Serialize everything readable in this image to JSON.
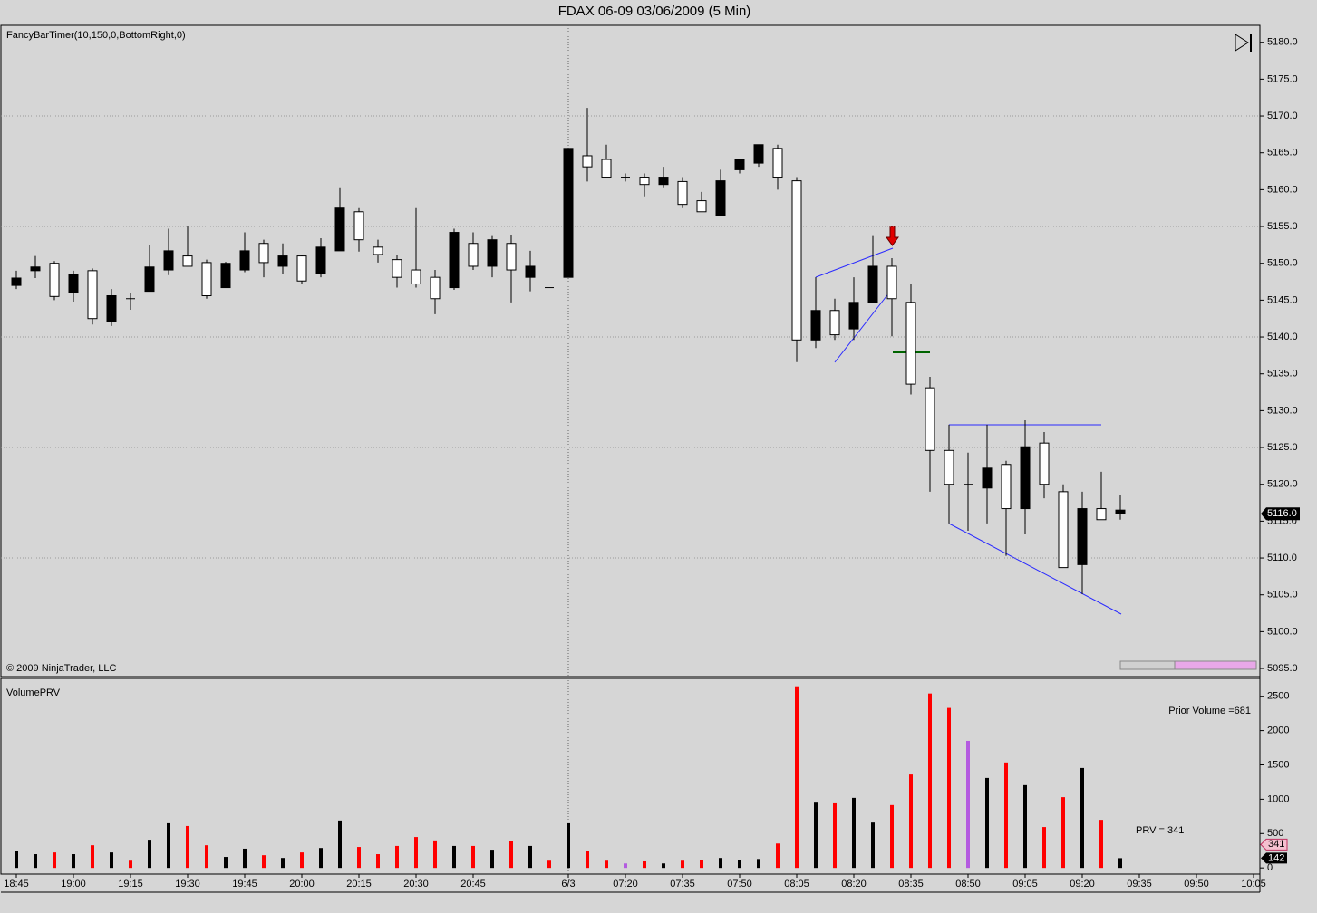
{
  "title": "FDAX 06-09  03/06/2009 (5 Min)",
  "indicator_label": "FancyBarTimer(10,150,0,BottomRight,0)",
  "copyright": "© 2009 NinjaTrader, LLC",
  "chart_data": [
    {
      "type": "candlestick",
      "categories": [
        "18:45",
        null,
        null,
        "19:00",
        null,
        null,
        "19:15",
        null,
        null,
        "19:30",
        null,
        null,
        "19:45",
        null,
        null,
        "20:00",
        null,
        null,
        "20:15",
        null,
        null,
        "20:30",
        null,
        null,
        "20:45",
        null,
        null,
        null,
        null,
        "6/3",
        null,
        null,
        "07:20",
        null,
        null,
        "07:35",
        null,
        null,
        "07:50",
        null,
        null,
        "08:05",
        null,
        null,
        "08:20",
        null,
        null,
        "08:35",
        null,
        null,
        "08:50",
        null,
        null,
        "09:05",
        null,
        null,
        "09:20",
        null,
        null,
        "09:35",
        null,
        null,
        "09:50",
        null,
        null,
        "10:05"
      ],
      "open": [
        5148.0,
        5149.5,
        5145.5,
        5148.5,
        5142.5,
        5145.6,
        5145.2,
        5149.5,
        5151.7,
        5149.6,
        5145.6,
        5150.0,
        5151.7,
        5150.1,
        5151.0,
        5147.6,
        5152.2,
        5157.5,
        5153.2,
        5151.2,
        5148.1,
        5147.2,
        5145.2,
        5154.2,
        5149.6,
        5153.2,
        5149.1,
        5149.6,
        5146.7,
        5165.6,
        5163.1,
        5161.7,
        5161.7,
        5160.7,
        5161.7,
        5158.0,
        5157.0,
        5161.2,
        5164.1,
        5166.1,
        5161.7,
        5139.6,
        5143.6,
        5140.3,
        5144.7,
        5149.6,
        5145.2,
        5133.6,
        5124.6,
        5120.0,
        5120.0,
        5122.2,
        5116.7,
        5125.1,
        5120.0,
        5108.7,
        5116.7,
        5115.2,
        5116.5,
        null,
        null,
        null,
        null,
        null,
        null,
        null
      ],
      "high": [
        5149.0,
        5151.0,
        5150.3,
        5149.0,
        5149.3,
        5146.5,
        5146.0,
        5152.5,
        5154.7,
        5155.0,
        5150.5,
        5150.2,
        5154.2,
        5153.2,
        5152.7,
        5151.2,
        5153.4,
        5160.2,
        5157.5,
        5153.2,
        5151.2,
        5157.5,
        5149.1,
        5154.7,
        5154.2,
        5153.7,
        5153.9,
        5151.7,
        5146.7,
        5165.6,
        5171.1,
        5166.1,
        5162.2,
        5162.2,
        5163.1,
        5161.7,
        5159.7,
        5162.7,
        5164.1,
        5166.1,
        5166.1,
        5161.7,
        5148.1,
        5145.2,
        5148.1,
        5153.7,
        5150.7,
        5147.2,
        5134.6,
        5128.1,
        5124.3,
        5128.1,
        5123.2,
        5128.7,
        5127.1,
        5120.0,
        5119.0,
        5121.7,
        5118.5,
        null,
        null,
        null,
        null,
        null,
        null,
        null
      ],
      "low": [
        5146.5,
        5148.0,
        5145.0,
        5144.8,
        5141.7,
        5141.5,
        5143.7,
        5146.2,
        5148.4,
        5149.6,
        5145.2,
        5146.7,
        5148.8,
        5148.1,
        5148.6,
        5147.2,
        5148.1,
        5151.7,
        5151.6,
        5150.1,
        5146.7,
        5146.7,
        5143.1,
        5146.4,
        5149.1,
        5148.1,
        5144.7,
        5146.2,
        5146.7,
        5148.1,
        5161.1,
        5161.7,
        5161.1,
        5159.1,
        5160.2,
        5157.5,
        5157.0,
        5156.5,
        5162.2,
        5163.1,
        5160.0,
        5136.6,
        5138.5,
        5139.6,
        5139.6,
        5144.7,
        5140.1,
        5132.2,
        5119.0,
        5114.7,
        5113.7,
        5114.7,
        5110.3,
        5113.2,
        5118.1,
        5108.7,
        5105.1,
        5115.2,
        5115.2,
        null,
        null,
        null,
        null,
        null,
        null,
        null
      ],
      "close": [
        5147.0,
        5149.0,
        5150.0,
        5146.0,
        5149.0,
        5142.1,
        5145.2,
        5146.2,
        5149.1,
        5151.0,
        5150.1,
        5146.7,
        5149.1,
        5152.7,
        5149.6,
        5151.0,
        5148.6,
        5151.7,
        5157.0,
        5152.2,
        5150.5,
        5149.1,
        5148.1,
        5146.7,
        5152.7,
        5149.6,
        5152.7,
        5148.1,
        5146.7,
        5148.1,
        5164.6,
        5164.1,
        5161.7,
        5161.7,
        5160.7,
        5161.1,
        5158.5,
        5156.5,
        5162.7,
        5163.6,
        5165.6,
        5161.2,
        5139.6,
        5143.6,
        5141.1,
        5144.7,
        5149.6,
        5144.7,
        5133.1,
        5124.6,
        5120.0,
        5119.5,
        5122.7,
        5116.7,
        5125.6,
        5119.0,
        5109.1,
        5116.7,
        5116.0,
        null,
        null,
        null,
        null,
        null,
        null,
        null
      ],
      "up_color": "#ffffff",
      "down_color": "#000000",
      "ylim": [
        5093.9,
        5182.3
      ],
      "yticks": [
        {
          "value": 5095,
          "label": "5095.0"
        },
        {
          "value": 5100,
          "label": "5100.0"
        },
        {
          "value": 5105,
          "label": "5105.0"
        },
        {
          "value": 5110,
          "label": "5110.0"
        },
        {
          "value": 5115,
          "label": "5115.0"
        },
        {
          "value": 5120,
          "label": "5120.0"
        },
        {
          "value": 5125,
          "label": "5125.0"
        },
        {
          "value": 5130,
          "label": "5130.0"
        },
        {
          "value": 5135,
          "label": "5135.0"
        },
        {
          "value": 5140,
          "label": "5140.0"
        },
        {
          "value": 5145,
          "label": "5145.0"
        },
        {
          "value": 5150,
          "label": "5150.0"
        },
        {
          "value": 5155,
          "label": "5155.0"
        },
        {
          "value": 5160,
          "label": "5160.0"
        },
        {
          "value": 5165,
          "label": "5165.0"
        },
        {
          "value": 5170,
          "label": "5170.0"
        },
        {
          "value": 5175,
          "label": "5175.0"
        },
        {
          "value": 5180,
          "label": "5180.0"
        }
      ],
      "last_price": {
        "value": 5116.0,
        "label": "5116.0"
      },
      "grid": true
    },
    {
      "type": "bar",
      "title": "VolumePRV",
      "values": [
        250,
        200,
        225,
        200,
        330,
        225,
        105,
        410,
        650,
        610,
        330,
        160,
        280,
        185,
        145,
        225,
        290,
        690,
        305,
        200,
        320,
        450,
        400,
        320,
        320,
        265,
        385,
        320,
        105,
        650,
        250,
        105,
        65,
        95,
        65,
        105,
        120,
        145,
        120,
        130,
        355,
        2645,
        950,
        940,
        1020,
        660,
        915,
        1360,
        2540,
        2330,
        1850,
        1310,
        1535,
        1205,
        595,
        1030,
        1455,
        700,
        142,
        null,
        null,
        null,
        null,
        null,
        null,
        null
      ],
      "colors": [
        "#000000",
        "#000000",
        "#ff0000",
        "#000000",
        "#ff0000",
        "#000000",
        "#ff0000",
        "#000000",
        "#000000",
        "#ff0000",
        "#ff0000",
        "#000000",
        "#000000",
        "#ff0000",
        "#000000",
        "#ff0000",
        "#000000",
        "#000000",
        "#ff0000",
        "#ff0000",
        "#ff0000",
        "#ff0000",
        "#ff0000",
        "#000000",
        "#ff0000",
        "#000000",
        "#ff0000",
        "#000000",
        "#ff0000",
        "#000000",
        "#ff0000",
        "#ff0000",
        "#b45be0",
        "#ff0000",
        "#000000",
        "#ff0000",
        "#ff0000",
        "#000000",
        "#000000",
        "#000000",
        "#ff0000",
        "#ff0000",
        "#000000",
        "#ff0000",
        "#000000",
        "#000000",
        "#ff0000",
        "#ff0000",
        "#ff0000",
        "#ff0000",
        "#b45be0",
        "#000000",
        "#ff0000",
        "#000000",
        "#ff0000",
        "#ff0000",
        "#000000",
        "#ff0000",
        "#000000",
        null,
        null,
        null,
        null,
        null,
        null,
        null
      ],
      "ylim": [
        -90,
        2760
      ],
      "yticks": [
        0,
        500,
        1000,
        1500,
        2000,
        2500
      ],
      "prior_volume_label": "Prior Volume =681",
      "prv_label": "PRV = 341",
      "prv_marker": 341
    }
  ]
}
